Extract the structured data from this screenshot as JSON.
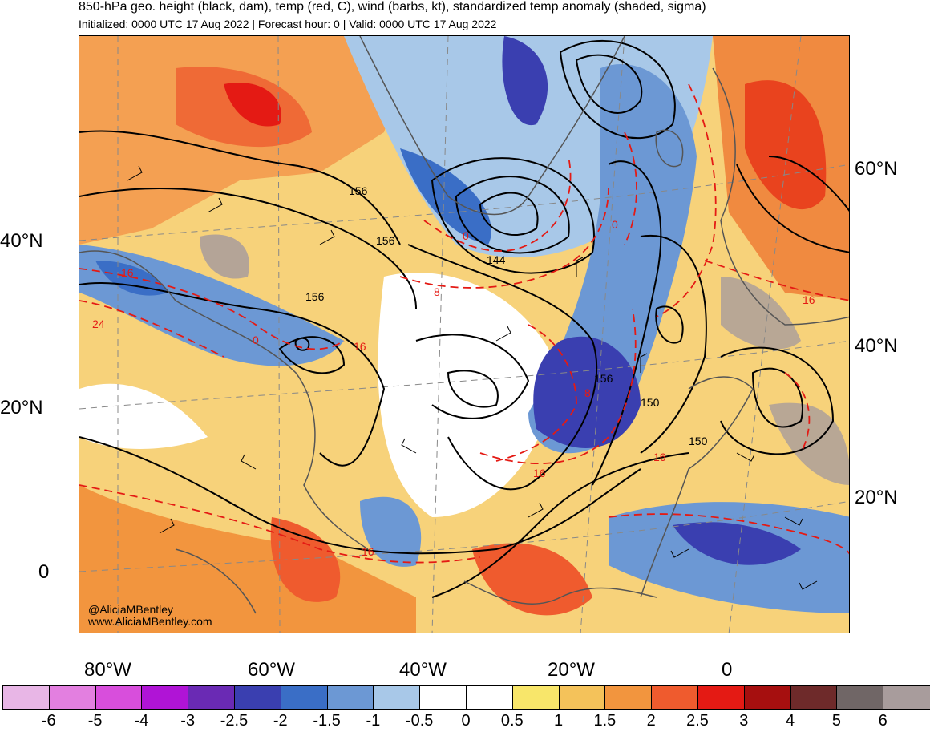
{
  "header": {
    "title": "850-hPa geo. height (black, dam), temp (red, C), wind (barbs, kt), standardized temp anomaly (shaded, sigma)",
    "subtitle": "Initialized: 0000 UTC 17 Aug 2022 | Forecast hour: 0 | Valid: 0000 UTC 17 Aug 2022"
  },
  "map": {
    "lat_labels_left": [
      "40°N",
      "20°N",
      "0"
    ],
    "lat_labels_right": [
      "60°N",
      "40°N",
      "20°N"
    ],
    "lon_labels": [
      "80°W",
      "60°W",
      "40°W",
      "20°W",
      "0"
    ],
    "height_contour_labels": [
      "156",
      "156",
      "156",
      "144",
      "156",
      "150",
      "150"
    ],
    "temp_contour_labels": [
      "16",
      "24",
      "0",
      "8",
      "0",
      "0",
      "16",
      "8",
      "16",
      "16",
      "16",
      "16"
    ],
    "watermark_handle": "@AliciaMBentley",
    "watermark_url": "www.AliciaMBentley.com"
  },
  "colorbar": {
    "colors": [
      "#e8b6e6",
      "#e37fe0",
      "#d84edc",
      "#b014d6",
      "#6a2ab4",
      "#3a3fb0",
      "#3a6ec6",
      "#6c98d4",
      "#a8c8e8",
      "#ffffff",
      "#ffffff",
      "#f8e66a",
      "#f4c25a",
      "#f2953e",
      "#ef5b2e",
      "#e41a14",
      "#a60f0f",
      "#6e2a2a",
      "#706666",
      "#a89c9c"
    ],
    "tick_labels": [
      "-6",
      "-5",
      "-4",
      "-3",
      "-2.5",
      "-2",
      "-1.5",
      "-1",
      "-0.5",
      "0",
      "0.5",
      "1",
      "1.5",
      "2",
      "2.5",
      "3",
      "4",
      "5",
      "6"
    ]
  }
}
